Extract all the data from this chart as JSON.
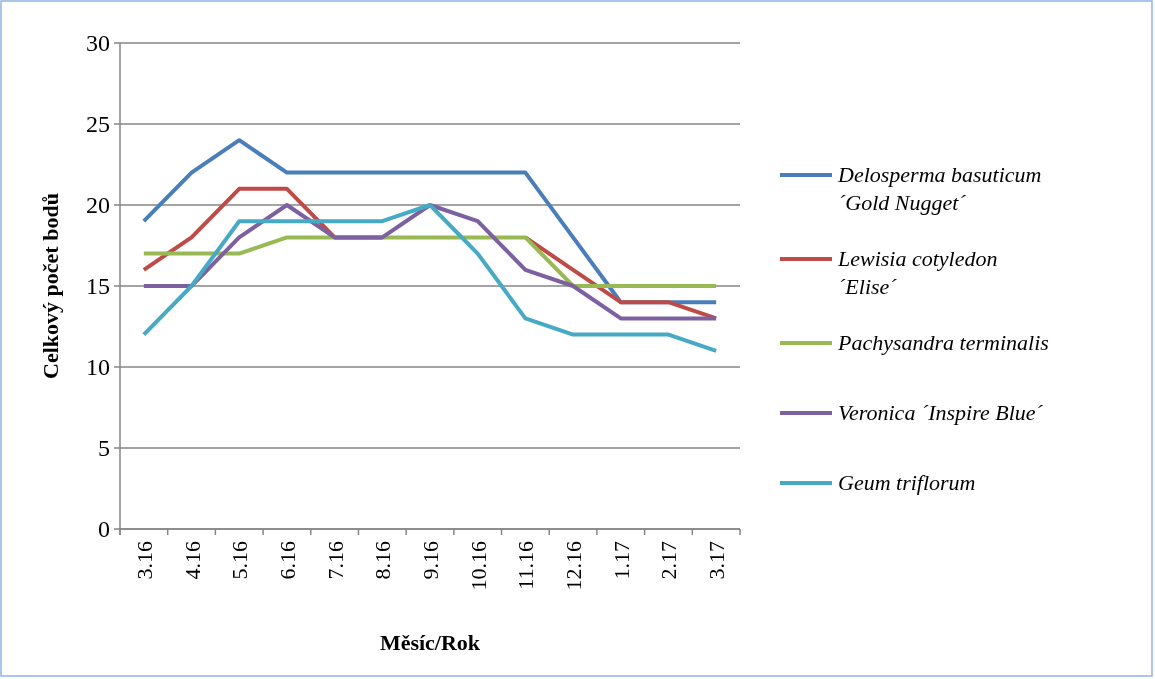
{
  "chart_data": {
    "type": "line",
    "xlabel": "Měsíc/Rok",
    "ylabel": "Celkový počet bodů",
    "categories": [
      "3.16",
      "4.16",
      "5.16",
      "6.16",
      "7.16",
      "8.16",
      "9.16",
      "10.16",
      "11.16",
      "12.16",
      "1.17",
      "2.17",
      "3.17"
    ],
    "ylim": [
      0,
      30
    ],
    "yticks": [
      0,
      5,
      10,
      15,
      20,
      25,
      30
    ],
    "grid": "y",
    "legend": "right",
    "marker": "none",
    "line_style": "solid",
    "series": [
      {
        "name": "Delosperma basuticum ´Gold Nugget´",
        "color": "#4a7ebb",
        "values": [
          19,
          22,
          24,
          22,
          22,
          22,
          22,
          22,
          22,
          18,
          14,
          14,
          14
        ]
      },
      {
        "name": "Lewisia cotyledon ´Elise´",
        "color": "#be4b48",
        "values": [
          16,
          18,
          21,
          21,
          18,
          18,
          null,
          null,
          18,
          16,
          14,
          14,
          13
        ]
      },
      {
        "name": "Pachysandra terminalis",
        "color": "#98b954",
        "values": [
          17,
          17,
          17,
          18,
          18,
          18,
          18,
          18,
          18,
          15,
          15,
          15,
          15
        ]
      },
      {
        "name": "Veronica ´Inspire Blue´",
        "color": "#7d60a0",
        "values": [
          15,
          15,
          18,
          20,
          18,
          18,
          20,
          19,
          16,
          15,
          13,
          13,
          13
        ]
      },
      {
        "name": "Geum triflorum",
        "color": "#46aac5",
        "values": [
          12,
          15,
          19,
          19,
          19,
          19,
          20,
          17,
          13,
          12,
          12,
          12,
          11
        ]
      }
    ]
  }
}
